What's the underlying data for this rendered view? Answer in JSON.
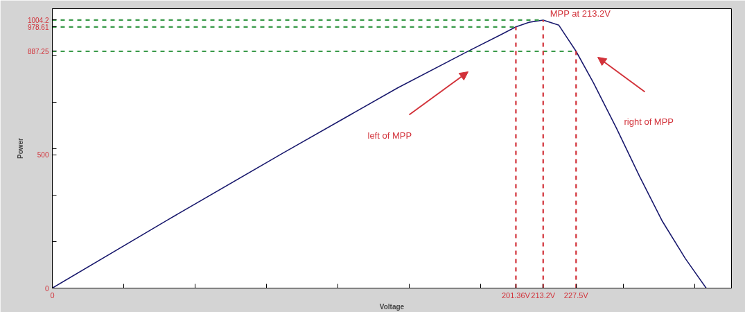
{
  "chart_data": {
    "type": "line",
    "xlabel": "Voltage",
    "ylabel": "Power",
    "x": [
      0,
      50,
      100,
      150,
      180,
      195,
      201.36,
      207,
      213.2,
      220,
      227.5,
      235,
      245,
      255,
      265,
      275,
      284
    ],
    "series": [
      {
        "color": "#1a1a6e",
        "values": [
          0,
          255,
          505,
          750,
          885,
          950,
          978.61,
          996,
          1004.2,
          985,
          887.25,
          770,
          600,
          420,
          250,
          110,
          0
        ]
      }
    ],
    "xlim": [
      0,
      295
    ],
    "ylim": [
      0,
      1047
    ],
    "xticks": [
      0,
      {
        "value": 31,
        "label": null
      },
      {
        "value": 62,
        "label": null
      },
      {
        "value": 93,
        "label": null
      },
      {
        "value": 124,
        "label": null
      },
      {
        "value": 155,
        "label": null
      },
      {
        "value": 186,
        "label": null
      },
      {
        "value": 201.36,
        "label": "201.36V"
      },
      {
        "value": 213.2,
        "label": "213.2V"
      },
      {
        "value": 227.5,
        "label": "227.5V"
      },
      {
        "value": 248,
        "label": null
      },
      {
        "value": 279,
        "label": null
      }
    ],
    "yticks": [
      0,
      {
        "value": 174,
        "label": null
      },
      {
        "value": 348,
        "label": null
      },
      500,
      {
        "value": 522,
        "label": null
      },
      {
        "value": 696,
        "label": null
      },
      {
        "value": 870,
        "label": null
      },
      887.25,
      978.61,
      1004.2
    ],
    "ref_lines": [
      {
        "axis": "y",
        "value": 1004.2,
        "color": "#3a9a4a",
        "line_style": "dashed"
      },
      {
        "axis": "y",
        "value": 978.61,
        "color": "#3a9a4a",
        "line_style": "dashed"
      },
      {
        "axis": "y",
        "value": 887.25,
        "color": "#3a9a4a",
        "line_style": "dashed"
      },
      {
        "axis": "x",
        "value": 201.36,
        "color": "#d2323a",
        "line_style": "dashed"
      },
      {
        "axis": "x",
        "value": 213.2,
        "color": "#d2323a",
        "line_style": "dashed"
      },
      {
        "axis": "x",
        "value": 227.5,
        "color": "#d2323a",
        "line_style": "dashed"
      }
    ],
    "annotations": [
      {
        "text": "MPP at 213.2V",
        "x": 213.2,
        "y": 1004.2
      },
      "left of MPP",
      "right of MPP"
    ],
    "grid": false,
    "marker": "none",
    "line_style": "solid"
  }
}
